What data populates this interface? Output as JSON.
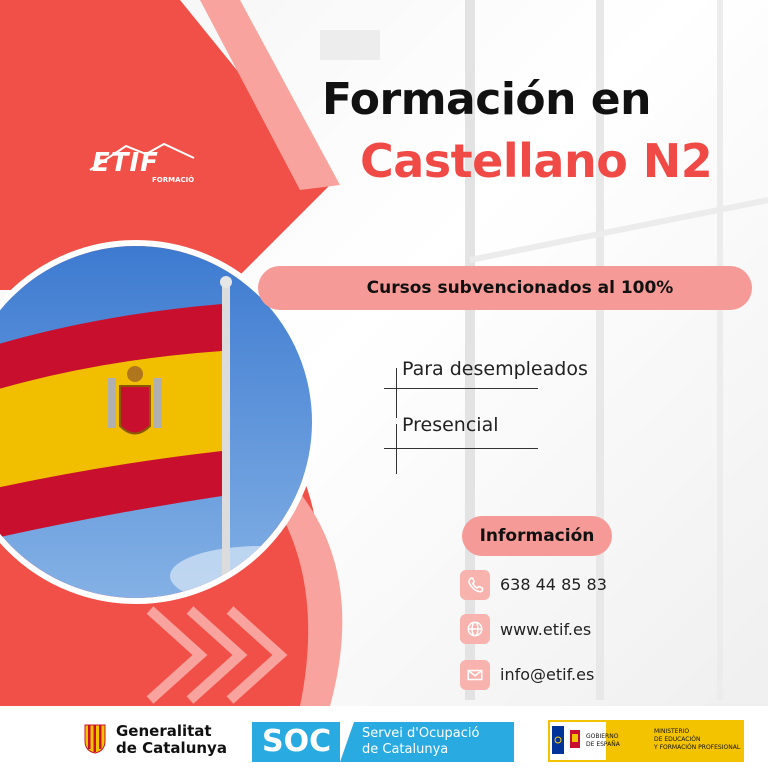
{
  "brand": {
    "logo": "ETIF",
    "logo_sub": "FORMACIÓ"
  },
  "title": {
    "line1": "Formación en",
    "line2": "Castellano N2"
  },
  "banner": "Cursos subvencionados al 100%",
  "features": [
    "Para desempleados",
    "Presencial"
  ],
  "info": {
    "label": "Información",
    "phone": "638 44 85 83",
    "web": "www.etif.es",
    "email": "info@etif.es"
  },
  "footer": {
    "generalitat": [
      "Generalitat",
      "de Catalunya"
    ],
    "soc": {
      "abbr": "SOC",
      "name": [
        "Servei d'Ocupació",
        "de Catalunya"
      ]
    },
    "gobierno": {
      "left": [
        "GOBIERNO",
        "DE ESPAÑA"
      ],
      "right": [
        "MINISTERIO",
        "DE EDUCACIÓN",
        "Y FORMACIÓN PROFESIONAL"
      ]
    }
  },
  "colors": {
    "accent": "#f04a47",
    "pink": "#f59a96",
    "soc_blue": "#29abe2"
  },
  "icons": [
    "phone-icon",
    "globe-icon",
    "mail-icon",
    "spanish-flag-image"
  ]
}
